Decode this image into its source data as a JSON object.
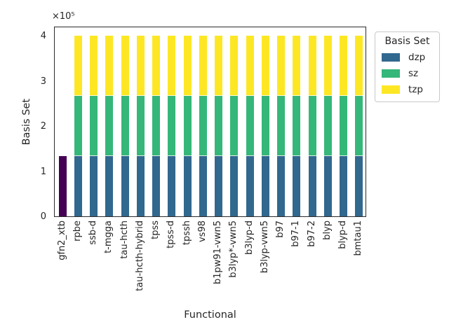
{
  "chart_data": {
    "type": "bar",
    "stacked": true,
    "title": "",
    "xlabel": "Functional",
    "ylabel": "Basis Set",
    "y_offset_text": "×10⁵",
    "grid": false,
    "ylim": [
      0,
      420000
    ],
    "yticks": {
      "values": [
        0,
        100000,
        200000,
        300000,
        400000
      ],
      "labels": [
        "0",
        "1",
        "2",
        "3",
        "4"
      ]
    },
    "categories": [
      "gfn2_xtb",
      "rpbe",
      "ssb-d",
      "t-mgga",
      "tau-hcth",
      "tau-hcth-hybrid",
      "tpss",
      "tpss-d",
      "tpssh",
      "vs98",
      "b1pw91-vwn5",
      "b3lyp*-vwn5",
      "b3lyp-d",
      "b3lyp-vwn5",
      "b97",
      "b97-1",
      "b97-2",
      "blyp",
      "blyp-d",
      "bmtau1"
    ],
    "series": [
      {
        "label": "",
        "in_legend": false,
        "color": "#440154",
        "values": [
          133333,
          0,
          0,
          0,
          0,
          0,
          0,
          0,
          0,
          0,
          0,
          0,
          0,
          0,
          0,
          0,
          0,
          0,
          0,
          0
        ]
      },
      {
        "label": "dzp",
        "in_legend": true,
        "color": "#31688e",
        "values": [
          0,
          133333,
          133333,
          133333,
          133333,
          133333,
          133333,
          133333,
          133333,
          133333,
          133333,
          133333,
          133333,
          133333,
          133333,
          133333,
          133333,
          133333,
          133333,
          133333
        ]
      },
      {
        "label": "sz",
        "in_legend": true,
        "color": "#35b779",
        "values": [
          0,
          133333,
          133333,
          133333,
          133333,
          133333,
          133333,
          133333,
          133333,
          133333,
          133333,
          133333,
          133333,
          133333,
          133333,
          133333,
          133333,
          133333,
          133333,
          133333
        ]
      },
      {
        "label": "tzp",
        "in_legend": true,
        "color": "#fde725",
        "values": [
          0,
          133334,
          133334,
          133334,
          133334,
          133334,
          133334,
          133334,
          133334,
          133334,
          133334,
          133334,
          133334,
          133334,
          133334,
          133334,
          133334,
          133334,
          133334,
          133334
        ]
      }
    ],
    "legend": {
      "title": "Basis Set",
      "position": "upper-right-outside",
      "entries": [
        {
          "label": "dzp",
          "color": "#31688e"
        },
        {
          "label": "sz",
          "color": "#35b779"
        },
        {
          "label": "tzp",
          "color": "#fde725"
        }
      ]
    }
  }
}
